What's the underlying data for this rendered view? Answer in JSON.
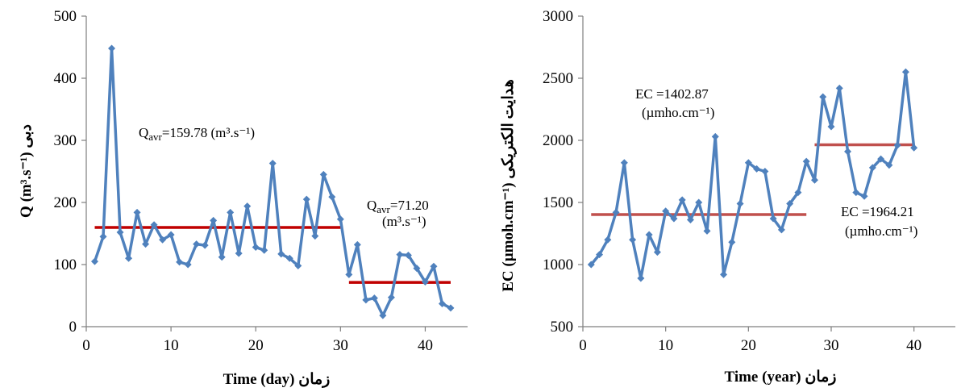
{
  "chart_data": [
    {
      "type": "line",
      "xlabel": "Time (day) زمان",
      "ylabel": "Q (m³.s⁻¹) دبی",
      "xlim": [
        0,
        45
      ],
      "ylim": [
        0,
        500
      ],
      "xticks": [
        "0",
        "10",
        "20",
        "30",
        "40"
      ],
      "yticks": [
        "0",
        "100",
        "200",
        "300",
        "400",
        "500"
      ],
      "grid": false,
      "legend": "none",
      "colors": {
        "series": "#4f81bd",
        "average": "#c00000"
      },
      "series": [
        {
          "x": [
            1,
            2,
            3,
            4,
            5,
            6,
            7,
            8,
            9,
            10,
            11,
            12,
            13,
            14,
            15,
            16,
            17,
            18,
            19,
            20,
            21,
            22,
            23,
            24,
            25,
            26,
            27,
            28,
            29,
            30,
            31,
            32,
            33,
            34,
            35,
            36,
            37,
            38,
            39,
            40,
            41,
            42,
            43
          ],
          "values": [
            105,
            145,
            448,
            152,
            110,
            184,
            133,
            164,
            140,
            148,
            104,
            100,
            133,
            131,
            171,
            112,
            184,
            118,
            194,
            128,
            123,
            263,
            117,
            110,
            98,
            205,
            146,
            245,
            209,
            173,
            84,
            132,
            43,
            46,
            18,
            47,
            116,
            115,
            94,
            72,
            97,
            37,
            30
          ]
        }
      ],
      "averages": [
        {
          "x_range": [
            1,
            30
          ],
          "value": 159.78
        },
        {
          "x_range": [
            31,
            43
          ],
          "value": 71.2
        }
      ],
      "annotations": [
        {
          "sub": "avr",
          "text": "=159.78 (m³.s⁻¹)"
        },
        {
          "sub": "avr",
          "text": "=71.20",
          "unit": "(m³.s⁻¹)"
        }
      ]
    },
    {
      "type": "line",
      "xlabel": "Time (year) زمان",
      "ylabel": "EC (µmoh.cm⁻¹) هدایت الکتریکی",
      "xlim": [
        0,
        45
      ],
      "ylim": [
        500,
        3000
      ],
      "xticks": [
        "0",
        "10",
        "20",
        "30",
        "40"
      ],
      "yticks": [
        "500",
        "1000",
        "1500",
        "2000",
        "2500",
        "3000"
      ],
      "grid": false,
      "legend": "none",
      "colors": {
        "series": "#4f81bd",
        "average": "#c0504d"
      },
      "series": [
        {
          "x": [
            1,
            2,
            3,
            4,
            5,
            6,
            7,
            8,
            9,
            10,
            11,
            12,
            13,
            14,
            15,
            16,
            17,
            18,
            19,
            20,
            21,
            22,
            23,
            24,
            25,
            26,
            27,
            28,
            29,
            30,
            31,
            32,
            33,
            34,
            35,
            36,
            37,
            38,
            39,
            40
          ],
          "values": [
            1000,
            1080,
            1200,
            1420,
            1820,
            1200,
            890,
            1240,
            1100,
            1430,
            1370,
            1520,
            1360,
            1500,
            1270,
            2030,
            920,
            1180,
            1490,
            1820,
            1770,
            1750,
            1370,
            1280,
            1490,
            1580,
            1830,
            1680,
            2350,
            2110,
            2420,
            1910,
            1580,
            1550,
            1780,
            1850,
            1800,
            1960,
            2550,
            1940
          ]
        }
      ],
      "averages": [
        {
          "x_range": [
            1,
            27
          ],
          "value": 1402.87
        },
        {
          "x_range": [
            28,
            40
          ],
          "value": 1964.21
        }
      ],
      "annotations": [
        {
          "text": "EC =1402.87",
          "unit": "(µmho.cm⁻¹)"
        },
        {
          "text": "EC =1964.21",
          "unit": "(µmho.cm⁻¹)"
        }
      ]
    }
  ]
}
